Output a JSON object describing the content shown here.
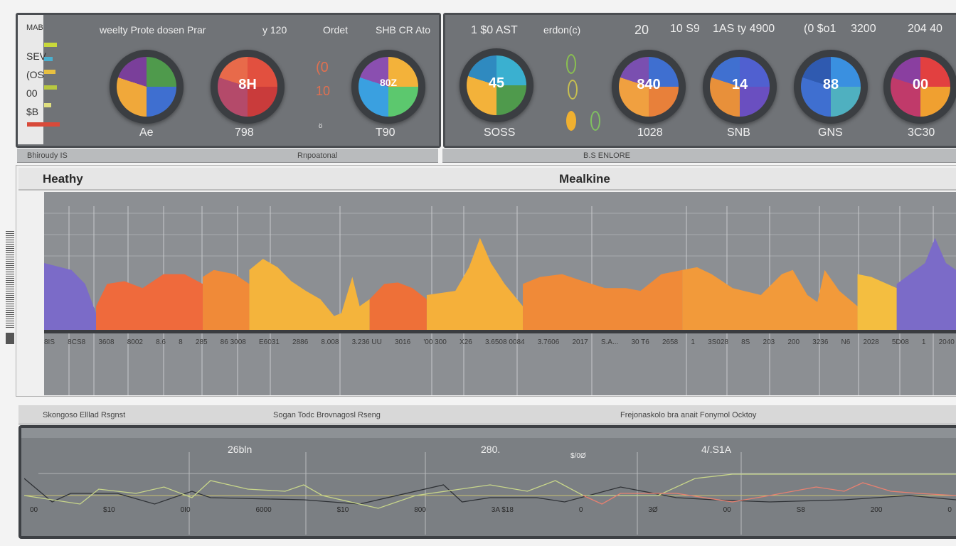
{
  "top_left": {
    "strip_labels": [
      "MAB",
      "SEV",
      "(OS",
      "00",
      "$B"
    ],
    "header": [
      "weelty Prote dosen Prar",
      "y 120",
      "Ordet",
      "SHB CR Ato"
    ],
    "gauges": [
      {
        "value": "",
        "label": "Ae",
        "colors": [
          "#4f9a4c",
          "#3f6fd0",
          "#f0a83a",
          "#7a3f9a"
        ]
      },
      {
        "value": "8H",
        "label": "798",
        "colors": [
          "#e2503f",
          "#c93b3b",
          "#b44a6a",
          "#e86a4a"
        ]
      },
      {
        "value": "80Z",
        "label": "T90",
        "colors": [
          "#f3b23a",
          "#5cc86e",
          "#3aa0e0",
          "#8a4fb0"
        ]
      }
    ],
    "mid_values": [
      "(0",
      "10",
      "ö"
    ],
    "sub_labels": [
      "Bhiroudy IS",
      "Rnpoatonal"
    ]
  },
  "top_right": {
    "header": [
      "1 $0 AST",
      "erdon(c)",
      "20",
      "10 S9",
      "1AS ty 4900",
      "(0 $o1",
      "3200",
      "204 40"
    ],
    "gauges": [
      {
        "value": "45",
        "label": "SOSS",
        "colors": [
          "#3ab0d0",
          "#4f9a4c",
          "#f3b23a",
          "#2f8ac0"
        ]
      },
      {
        "value": "840",
        "label": "1028",
        "colors": [
          "#3f6fd0",
          "#e8803a",
          "#f0a040",
          "#7a4fb0"
        ]
      },
      {
        "value": "14",
        "label": "SNB",
        "colors": [
          "#5060d0",
          "#6a4fc0",
          "#e8903a",
          "#4070d0"
        ]
      },
      {
        "value": "88",
        "label": "GNS",
        "colors": [
          "#3a90e0",
          "#4fb0c0",
          "#3f6fd0",
          "#2f5ab0"
        ]
      },
      {
        "value": "00",
        "label": "3C30",
        "colors": [
          "#e24040",
          "#f0a030",
          "#c03a6a",
          "#8a3fa0"
        ]
      }
    ],
    "sub_label": "B.S ENLORE"
  },
  "main": {
    "title_left": "Heathy",
    "title_center": "Mealkine",
    "axis_labels": [
      "8IS",
      "8CS8",
      "3608",
      "8002",
      "8.6",
      "8",
      "285",
      "86 3008",
      "E6031",
      "2886",
      "8.008",
      "3.236 UU",
      "3016",
      "'00 300",
      "X26",
      "3.6508 0084",
      "3.7606",
      "2017",
      "S.A...",
      "30 T6",
      "2658",
      "1",
      "3S028",
      "8S",
      "203",
      "200",
      "3236",
      "N6",
      "2028",
      "5D08",
      "1",
      "2040"
    ],
    "area_series": [
      {
        "color": "#7b6bc8",
        "points": [
          [
            0,
            49
          ],
          [
            3,
            44
          ],
          [
            4.5,
            34
          ],
          [
            5.7,
            13
          ]
        ]
      },
      {
        "color": "#ef6a3c",
        "points": [
          [
            5.7,
            18
          ],
          [
            6.9,
            34
          ],
          [
            8.8,
            36
          ],
          [
            10.8,
            31
          ],
          [
            13.1,
            41
          ],
          [
            15.4,
            41
          ],
          [
            17.4,
            34
          ]
        ]
      },
      {
        "color": "#f08a38",
        "points": [
          [
            17.4,
            39
          ],
          [
            18.6,
            44
          ],
          [
            20.9,
            41
          ],
          [
            22.5,
            34
          ]
        ]
      },
      {
        "color": "#f4b43c",
        "points": [
          [
            22.5,
            44
          ],
          [
            24,
            52
          ],
          [
            25.6,
            46
          ],
          [
            27.1,
            36
          ],
          [
            28.7,
            29
          ],
          [
            30.3,
            23
          ],
          [
            31.8,
            11
          ],
          [
            32.6,
            13
          ],
          [
            33.8,
            39
          ],
          [
            34.6,
            18
          ],
          [
            35.7,
            23
          ]
        ]
      },
      {
        "color": "#ee7038",
        "points": [
          [
            35.7,
            23
          ],
          [
            37.3,
            34
          ],
          [
            38.8,
            35
          ],
          [
            40.4,
            31
          ],
          [
            41.96,
            23
          ]
        ]
      },
      {
        "color": "#f5b03a",
        "points": [
          [
            41.96,
            26
          ],
          [
            45.1,
            29
          ],
          [
            46.6,
            46
          ],
          [
            47.8,
            67
          ],
          [
            49,
            49
          ],
          [
            50.5,
            34
          ],
          [
            52.5,
            18
          ]
        ]
      },
      {
        "color": "#f08a38",
        "points": [
          [
            52.5,
            34
          ],
          [
            54.4,
            39
          ],
          [
            56.8,
            41
          ],
          [
            59.1,
            36
          ],
          [
            61.5,
            31
          ],
          [
            63.8,
            31
          ],
          [
            65.4,
            29
          ],
          [
            67.7,
            41
          ],
          [
            70,
            44
          ]
        ]
      },
      {
        "color": "#f29a3a",
        "points": [
          [
            70,
            44
          ],
          [
            71.6,
            46
          ],
          [
            73.2,
            41
          ],
          [
            75.5,
            31
          ],
          [
            78.6,
            26
          ],
          [
            80.9,
            41
          ],
          [
            82.1,
            44
          ],
          [
            83.7,
            26
          ],
          [
            84.8,
            21
          ],
          [
            85.6,
            44
          ],
          [
            87.2,
            29
          ],
          [
            89.2,
            18
          ]
        ]
      },
      {
        "color": "#f4be40",
        "points": [
          [
            89.2,
            41
          ],
          [
            90.7,
            39
          ],
          [
            93.5,
            31
          ]
        ]
      },
      {
        "color": "#7b6bc8",
        "points": [
          [
            93.5,
            34
          ],
          [
            96.6,
            49
          ],
          [
            97.7,
            67
          ],
          [
            98.9,
            49
          ],
          [
            100,
            44
          ]
        ]
      }
    ]
  },
  "section_labels": [
    "Skongoso Elllad Rsgnst",
    "Sogan Todc Brovnagosl Rseng",
    "Frejonaskolo bra anait Fonymol Ocktoy"
  ],
  "bottom": {
    "peak_labels": [
      "26bln",
      "280.",
      "$/0Ø",
      "4/.S1A"
    ],
    "axis_labels": [
      "00",
      "$10",
      "0I0",
      "6000",
      "$10",
      "800",
      "3A $18",
      "0",
      "3Ø",
      "00",
      "S8",
      "200",
      "0"
    ],
    "series": [
      {
        "color": "#2f3236",
        "points": [
          [
            0,
            40
          ],
          [
            3,
            -15
          ],
          [
            5,
            5
          ],
          [
            10,
            5
          ],
          [
            14,
            -20
          ],
          [
            18,
            10
          ],
          [
            20,
            -5
          ],
          [
            30,
            -10
          ],
          [
            36,
            -20
          ],
          [
            45,
            25
          ],
          [
            47,
            -15
          ],
          [
            50,
            -5
          ],
          [
            55,
            -5
          ],
          [
            58,
            -15
          ],
          [
            64,
            20
          ],
          [
            70,
            -5
          ],
          [
            74,
            -10
          ],
          [
            80,
            -15
          ],
          [
            88,
            -10
          ],
          [
            95,
            0
          ],
          [
            100,
            -10
          ]
        ]
      },
      {
        "color": "#c8d68a",
        "points": [
          [
            0,
            0
          ],
          [
            6,
            -20
          ],
          [
            8,
            15
          ],
          [
            12,
            5
          ],
          [
            15,
            20
          ],
          [
            18,
            -5
          ],
          [
            20,
            35
          ],
          [
            24,
            15
          ],
          [
            28,
            10
          ],
          [
            30,
            25
          ],
          [
            32,
            0
          ],
          [
            38,
            -30
          ],
          [
            42,
            0
          ],
          [
            50,
            25
          ],
          [
            54,
            10
          ],
          [
            57,
            35
          ],
          [
            60,
            0
          ],
          [
            68,
            0
          ],
          [
            72,
            40
          ],
          [
            76,
            50
          ],
          [
            86,
            50
          ],
          [
            100,
            50
          ]
        ]
      },
      {
        "color": "#e88070",
        "points": [
          [
            60,
            0
          ],
          [
            62,
            -20
          ],
          [
            64,
            5
          ],
          [
            70,
            5
          ],
          [
            76,
            -15
          ],
          [
            80,
            0
          ],
          [
            85,
            20
          ],
          [
            88,
            10
          ],
          [
            90,
            30
          ],
          [
            93,
            10
          ],
          [
            96,
            5
          ],
          [
            100,
            0
          ]
        ]
      }
    ]
  }
}
